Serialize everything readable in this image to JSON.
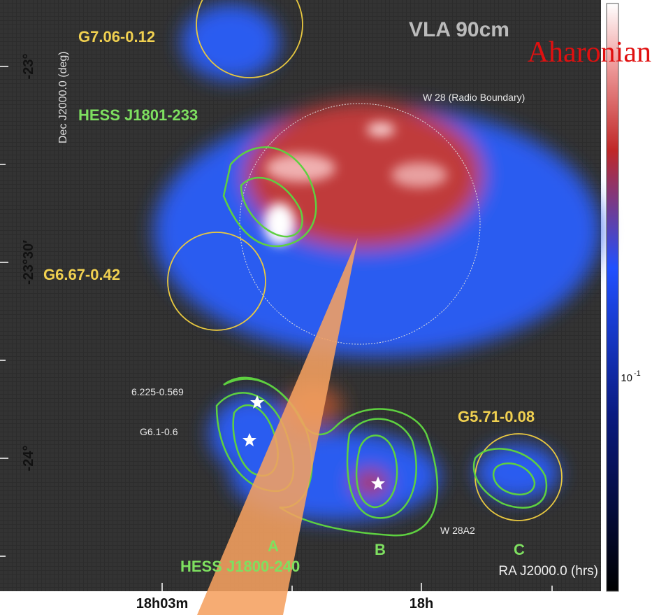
{
  "image": {
    "title": "VLA 90cm",
    "watermark": "Aharonian",
    "boundary_label": "W 28 (Radio Boundary)",
    "sources": {
      "g7": "G7.06-0.12",
      "hess_north": "HESS J1801-233",
      "g667": "G6.67-0.42",
      "s6225": "6.225-0.569",
      "g61": "G6.1-0.6",
      "g571": "G5.71-0.08",
      "w28a2": "W 28A2",
      "a": "A",
      "b": "B",
      "c": "C",
      "hess_south": "HESS J1800-240"
    },
    "axes": {
      "x_label": "RA J2000.0 (hrs)",
      "y_label": "Dec J2000.0 (deg)",
      "x_ticks": [
        "18h03m",
        "18h"
      ],
      "y_ticks": [
        "-23°",
        "-23°30′",
        "-24°"
      ]
    },
    "colorbar": {
      "base": "10",
      "exponent": "-1"
    }
  }
}
